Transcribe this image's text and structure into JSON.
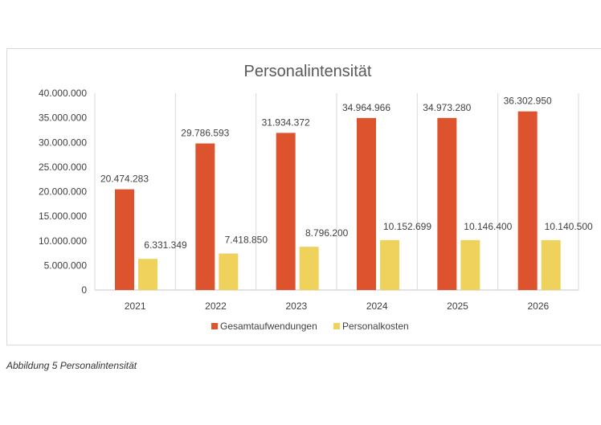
{
  "chart_data": {
    "type": "bar",
    "title": "Personalintensität",
    "categories": [
      "2021",
      "2022",
      "2023",
      "2024",
      "2025",
      "2026"
    ],
    "series": [
      {
        "name": "Gesamtaufwendungen",
        "color": "#DC532E",
        "values": [
          20474283,
          29786593,
          31934372,
          34964966,
          34973280,
          36302950
        ],
        "labels": [
          "20.474.283",
          "29.786.593",
          "31.934.372",
          "34.964.966",
          "34.973.280",
          "36.302.950"
        ]
      },
      {
        "name": "Personalkosten",
        "color": "#EFD25C",
        "values": [
          6331349,
          7418850,
          8796200,
          10152699,
          10146400,
          10140500
        ],
        "labels": [
          "6.331.349",
          "7.418.850",
          "8.796.200",
          "10.152.699",
          "10.146.400",
          "10.140.500"
        ]
      }
    ],
    "ylim": [
      0,
      40000000
    ],
    "yticks": [
      "0",
      "5.000.000",
      "10.000.000",
      "15.000.000",
      "20.000.000",
      "25.000.000",
      "30.000.000",
      "35.000.000",
      "40.000.000"
    ],
    "grid": "vertical category separators",
    "legend": "bottom"
  },
  "caption": "Abbildung 5 Personalintensität"
}
